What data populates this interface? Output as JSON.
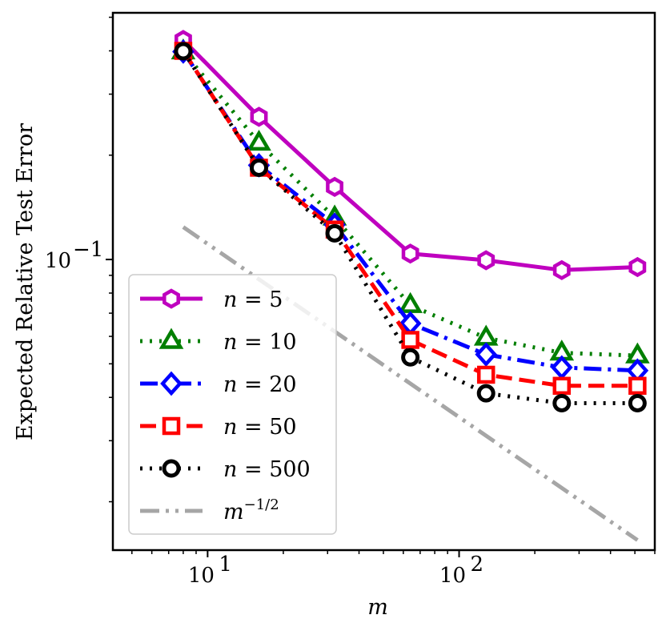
{
  "chart_data": {
    "type": "line",
    "xscale": "log",
    "yscale": "log",
    "xlabel": "m",
    "ylabel": "Expected Relative Test Error",
    "xlim": [
      4.2,
      600
    ],
    "ylim": [
      0.0145,
      0.515
    ],
    "x_ticks": [
      {
        "value": 10,
        "label": "10",
        "exp": "1"
      },
      {
        "value": 100,
        "label": "10",
        "exp": "2"
      }
    ],
    "y_ticks": [
      {
        "value": 0.1,
        "label": "10",
        "exp": "−1"
      }
    ],
    "legend_position": "lower-left",
    "series": [
      {
        "name": "n = 5",
        "color": "#bf00bf",
        "dash": "solid",
        "marker": "hexagon",
        "x": [
          8,
          16,
          32,
          64,
          128,
          256,
          512
        ],
        "y": [
          0.43,
          0.258,
          0.162,
          0.104,
          0.0995,
          0.0932,
          0.0951
        ]
      },
      {
        "name": "n = 10",
        "color": "#007f00",
        "dash": "dotted",
        "marker": "triangle",
        "x": [
          8,
          16,
          32,
          64,
          128,
          256,
          512
        ],
        "y": [
          0.398,
          0.217,
          0.132,
          0.0738,
          0.0594,
          0.0538,
          0.0528
        ]
      },
      {
        "name": "n = 20",
        "color": "#0000ff",
        "dash": "dashdot",
        "marker": "diamond",
        "x": [
          8,
          16,
          32,
          64,
          128,
          256,
          512
        ],
        "y": [
          0.398,
          0.187,
          0.126,
          0.0654,
          0.0532,
          0.0488,
          0.0478
        ]
      },
      {
        "name": "n = 50",
        "color": "#ff0000",
        "dash": "dashed",
        "marker": "square",
        "x": [
          8,
          16,
          32,
          64,
          128,
          256,
          512
        ],
        "y": [
          0.4,
          0.184,
          0.122,
          0.0586,
          0.0465,
          0.0432,
          0.0432
        ]
      },
      {
        "name": "n = 500",
        "color": "#000000",
        "dash": "dotted",
        "marker": "circle",
        "x": [
          8,
          16,
          32,
          64,
          128,
          256,
          512
        ],
        "y": [
          0.399,
          0.184,
          0.119,
          0.0522,
          0.0411,
          0.0385,
          0.0385
        ]
      },
      {
        "name": "m^{-1/2}",
        "color": "#a6a6a6",
        "dash": "dashdotdot",
        "marker": "none",
        "x": [
          8,
          512
        ],
        "y": [
          0.124,
          0.0155
        ]
      }
    ],
    "legend": [
      {
        "prefix": "n = ",
        "value": "5",
        "sup": ""
      },
      {
        "prefix": "n = ",
        "value": "10",
        "sup": ""
      },
      {
        "prefix": "n = ",
        "value": "20",
        "sup": ""
      },
      {
        "prefix": "n = ",
        "value": "50",
        "sup": ""
      },
      {
        "prefix": "n = ",
        "value": "500",
        "sup": ""
      },
      {
        "prefix": "m",
        "value": "",
        "sup": "−1/2"
      }
    ]
  }
}
